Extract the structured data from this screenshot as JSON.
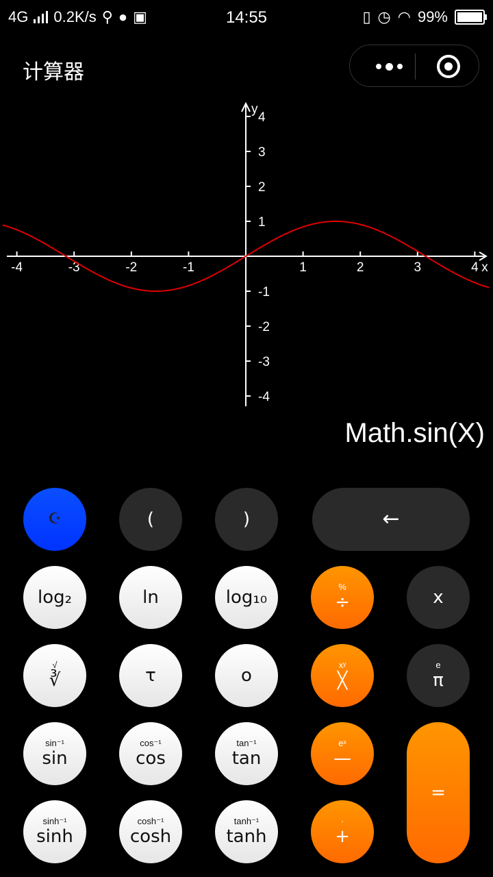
{
  "status": {
    "network": "4G",
    "speed": "0.2K/s",
    "time": "14:55",
    "battery": "99%"
  },
  "header": {
    "title": "计算器"
  },
  "graph": {
    "function": "Math.sin(X)",
    "x_axis_label": "x",
    "y_axis_label": "y",
    "x_ticks": [
      "-4",
      "-3",
      "-2",
      "-1",
      "1",
      "2",
      "3",
      "4"
    ],
    "y_ticks": [
      "4",
      "3",
      "2",
      "1",
      "-1",
      "-2",
      "-3",
      "-4"
    ],
    "curve_color": "#e00000"
  },
  "chart_data": {
    "type": "line",
    "x": [
      -4.25,
      -4,
      -3.5,
      -3,
      -2.5,
      -2,
      -1.57,
      -1,
      -0.5,
      0,
      0.5,
      1,
      1.57,
      2,
      2.5,
      3,
      3.5,
      4,
      4.25
    ],
    "series": [
      {
        "name": "",
        "values": [
          0.89,
          0.76,
          0.35,
          -0.14,
          -0.6,
          -0.91,
          -1,
          -0.84,
          -0.48,
          0,
          0.48,
          0.84,
          1,
          0.91,
          0.6,
          0.14,
          -0.35,
          -0.76,
          -0.89
        ]
      }
    ],
    "xlabel": "x",
    "ylabel": "y",
    "xlim": [
      -4.25,
      4.25
    ],
    "ylim": [
      -4,
      4
    ]
  },
  "keys": {
    "theme": "☪",
    "lparen": "(",
    "rparen": ")",
    "backspace": "←",
    "log2": "log₂",
    "ln": "ln",
    "log10": "log₁₀",
    "divide": "÷",
    "divide_sup": "%",
    "x": "x",
    "cbrt": "∛",
    "cbrt_sup": "√",
    "tau": "τ",
    "o": "o",
    "power_main": "╳",
    "power_sup": "xʸ",
    "pi": "π",
    "pi_sup": "e",
    "sin": "sin",
    "sin_sup": "sin⁻¹",
    "cos": "cos",
    "cos_sup": "cos⁻¹",
    "tan": "tan",
    "tan_sup": "tan⁻¹",
    "minus": "—",
    "minus_sup": "eˣ",
    "equals": "=",
    "sinh": "sinh",
    "sinh_sup": "sinh⁻¹",
    "cosh": "cosh",
    "cosh_sup": "cosh⁻¹",
    "tanh": "tanh",
    "tanh_sup": "tanh⁻¹",
    "plus": "+",
    "plus_sup": "·"
  }
}
